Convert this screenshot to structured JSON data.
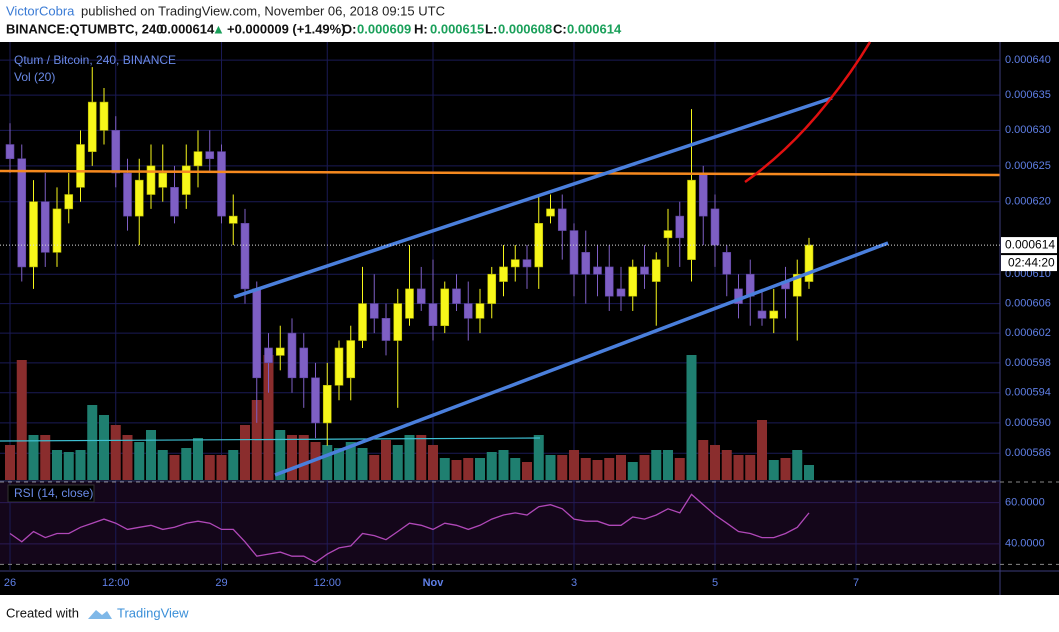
{
  "header": {
    "author": "VictorCobra",
    "published": "published on TradingView.com, November 06, 2018 09:15 UTC",
    "symbol": "BINANCE:QTUMBTC, 240",
    "price": 0.000614,
    "arrow": "▲",
    "change": "+0.000009 (+1.49%)",
    "o_label": "O:",
    "o": 0.000609,
    "h_label": "H:",
    "h": 0.000615,
    "l_label": "L:",
    "l": 0.000608,
    "c_label": "C:",
    "c": 0.000614
  },
  "chart_data": {
    "type": "candlestick",
    "title": "Qtum / Bitcoin, 240, BINANCE",
    "log_scale": true,
    "grid": true,
    "up_color": "#f7f71a",
    "down_color": "#7e5fc4",
    "categories": [
      "26",
      null,
      null,
      null,
      null,
      null,
      null,
      null,
      null,
      "12:00",
      null,
      null,
      null,
      null,
      null,
      null,
      null,
      null,
      "29",
      null,
      null,
      null,
      null,
      null,
      null,
      null,
      null,
      "12:00",
      null,
      null,
      null,
      null,
      null,
      null,
      null,
      null,
      "Nov",
      null,
      null,
      null,
      null,
      null,
      null,
      null,
      null,
      null,
      null,
      null,
      "3",
      null,
      null,
      null,
      null,
      null,
      null,
      null,
      null,
      null,
      null,
      null,
      "5",
      null,
      null,
      null,
      null,
      null,
      null,
      null,
      null,
      null,
      null,
      null,
      "7"
    ],
    "open": [
      0.000628,
      0.000626,
      0.000611,
      0.00062,
      0.000613,
      0.000619,
      0.000622,
      0.000627,
      0.00063,
      0.00063,
      0.000624,
      0.000618,
      0.000621,
      0.000622,
      0.000622,
      0.000621,
      0.000625,
      0.000627,
      0.000627,
      0.000617,
      0.000617,
      0.000608,
      0.0006,
      0.000599,
      0.000602,
      0.0006,
      0.000596,
      0.00059,
      0.000595,
      0.000596,
      0.000601,
      0.000606,
      0.000604,
      0.000601,
      0.000604,
      0.000608,
      0.000606,
      0.000603,
      0.000608,
      0.000606,
      0.000604,
      0.000606,
      0.000609,
      0.000611,
      0.000612,
      0.000611,
      0.000618,
      0.000619,
      0.000616,
      0.000613,
      0.000611,
      0.000611,
      0.000608,
      0.000607,
      0.000611,
      0.000609,
      0.000615,
      0.000618,
      0.000612,
      0.000624,
      0.000619,
      0.000613,
      0.000608,
      0.00061,
      0.000605,
      0.000604,
      0.000609,
      0.000607,
      0.000609,
      null,
      null,
      null,
      null
    ],
    "high": [
      0.000631,
      0.000628,
      0.000623,
      0.000624,
      0.000622,
      0.000624,
      0.00063,
      0.000639,
      0.000636,
      0.000632,
      0.000626,
      0.000626,
      0.000628,
      0.000628,
      0.000625,
      0.000628,
      0.00063,
      0.00063,
      0.000628,
      0.000621,
      0.000619,
      0.000609,
      0.000602,
      0.000603,
      0.000604,
      0.000602,
      0.000598,
      0.000598,
      0.000601,
      0.000603,
      0.000611,
      0.00061,
      0.000606,
      0.000608,
      0.000614,
      0.000611,
      0.000612,
      0.000609,
      0.00061,
      0.000609,
      0.000608,
      0.000611,
      0.000614,
      0.000614,
      0.000614,
      0.000621,
      0.000621,
      0.000621,
      0.000617,
      0.000616,
      0.000614,
      0.000614,
      0.000611,
      0.000612,
      0.000614,
      0.000613,
      0.000619,
      0.00062,
      0.000633,
      0.000625,
      0.000621,
      0.000614,
      0.00061,
      0.000612,
      0.000608,
      0.000608,
      0.000611,
      0.000612,
      0.000615,
      null,
      null,
      null,
      null
    ],
    "low": [
      0.000624,
      0.000609,
      0.000608,
      0.000611,
      0.000611,
      0.000617,
      0.00062,
      0.000625,
      0.000628,
      0.000622,
      0.000616,
      0.000614,
      0.000619,
      0.00062,
      0.000617,
      0.000619,
      0.000622,
      0.000624,
      0.000617,
      0.000614,
      0.000606,
      0.00059,
      0.000594,
      0.000597,
      0.000594,
      0.000592,
      0.000588,
      0.000587,
      0.000593,
      0.000593,
      0.0006,
      0.000602,
      0.000599,
      0.000592,
      0.000603,
      0.000605,
      0.000601,
      0.000602,
      0.000605,
      0.000601,
      0.000602,
      0.000604,
      0.000607,
      0.000609,
      0.000608,
      0.000608,
      0.000617,
      0.000612,
      0.000607,
      0.000606,
      0.000607,
      0.000605,
      0.000605,
      0.000605,
      0.000608,
      0.000603,
      0.000611,
      0.000611,
      0.000609,
      0.000614,
      0.000611,
      0.000607,
      0.000604,
      0.000603,
      0.000603,
      0.000602,
      0.000604,
      0.000601,
      0.000608,
      null,
      null,
      null,
      null
    ],
    "close": [
      0.000626,
      0.000611,
      0.00062,
      0.000613,
      0.000619,
      0.000621,
      0.000628,
      0.000634,
      0.000634,
      0.000624,
      0.000618,
      0.000623,
      0.000625,
      0.000624,
      0.000618,
      0.000625,
      0.000627,
      0.000626,
      0.000618,
      0.000618,
      0.000608,
      0.000596,
      0.000598,
      0.0006,
      0.000596,
      0.000596,
      0.00059,
      0.000595,
      0.0006,
      0.000601,
      0.000606,
      0.000604,
      0.000601,
      0.000606,
      0.000608,
      0.000606,
      0.000603,
      0.000608,
      0.000606,
      0.000604,
      0.000606,
      0.00061,
      0.000611,
      0.000612,
      0.000611,
      0.000617,
      0.000619,
      0.000616,
      0.00061,
      0.00061,
      0.00061,
      0.000607,
      0.000607,
      0.000611,
      0.00061,
      0.000612,
      0.000616,
      0.000615,
      0.000623,
      0.000618,
      0.000614,
      0.00061,
      0.000606,
      0.000607,
      0.000604,
      0.000605,
      0.000608,
      0.00061,
      0.000614,
      null,
      null,
      null,
      null
    ],
    "ylim": [
      0.0005825,
      0.0006426
    ],
    "yticks": [
      {
        "value": 0.00064,
        "label": "0.000640"
      },
      {
        "value": 0.000635,
        "label": "0.000635"
      },
      {
        "value": 0.00063,
        "label": "0.000630"
      },
      {
        "value": 0.000625,
        "label": "0.000625"
      },
      {
        "value": 0.00062,
        "label": "0.000620"
      },
      {
        "value": 0.00061,
        "label": "0.000610"
      },
      0.000606,
      0.000602,
      0.000598,
      0.000594,
      {
        "value": 0.00059,
        "label": "0.000590"
      },
      0.000586
    ],
    "last": 0.000614,
    "countdown": "02:44:20",
    "volume": {
      "title": "Vol (20)",
      "up_color": "#1f7f70",
      "down_color": "#8a2d2d",
      "ylim": [
        0,
        130
      ],
      "values": [
        35,
        120,
        45,
        45,
        30,
        28,
        30,
        75,
        65,
        55,
        45,
        38,
        50,
        30,
        25,
        32,
        42,
        25,
        25,
        30,
        55,
        80,
        125,
        50,
        45,
        45,
        38,
        35,
        32,
        38,
        32,
        25,
        40,
        35,
        45,
        45,
        35,
        22,
        20,
        22,
        22,
        28,
        30,
        22,
        18,
        45,
        25,
        25,
        30,
        22,
        20,
        22,
        25,
        18,
        25,
        30,
        30,
        22,
        125,
        40,
        35,
        30,
        25,
        25,
        60,
        20,
        22,
        30,
        15,
        null,
        null,
        null,
        null
      ]
    },
    "rsi": {
      "title": "RSI (14, close)",
      "color": "#b048b8",
      "ylim": [
        27.3,
        70
      ],
      "bands": [
        30,
        70
      ],
      "yticks": [
        {
          "value": 60,
          "label": "60.0000"
        },
        {
          "value": 40,
          "label": "40.0000"
        }
      ],
      "values": [
        45,
        41,
        46,
        43,
        45,
        45,
        48,
        50,
        52,
        50,
        47,
        48,
        49,
        47,
        48,
        50,
        51,
        50,
        47,
        47,
        41,
        34,
        35,
        36,
        34,
        34,
        31,
        35,
        38,
        39,
        45,
        44,
        42,
        46,
        50,
        49,
        47,
        50,
        49,
        47,
        49,
        52,
        54,
        55,
        54,
        58,
        59,
        57,
        52,
        51,
        51,
        49,
        49,
        53,
        52,
        54,
        57,
        55,
        64,
        59,
        54,
        50,
        46,
        45,
        43,
        43,
        45,
        48,
        55,
        null,
        null,
        null,
        null
      ]
    }
  },
  "footer": {
    "created": "Created with",
    "brand": "TradingView"
  }
}
